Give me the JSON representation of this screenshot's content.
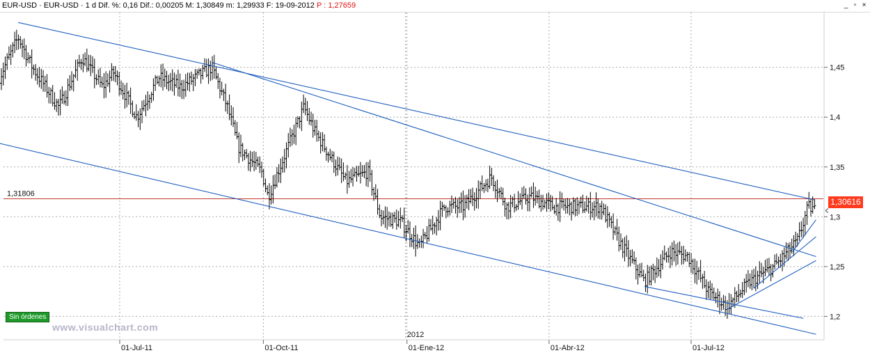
{
  "header": {
    "symbol": "EUR-USD · EUR-USD · 1 d",
    "dif_pct_label": "Dif. %:",
    "dif_pct": "0,16",
    "dif_label": "Dif.:",
    "dif": "0,00205",
    "max_label": "M:",
    "max": "1,30849",
    "min_label": "m:",
    "min": "1,29933",
    "date_label": "F:",
    "date": "19-09-2012",
    "price_label": "P :",
    "price": "1,27659"
  },
  "badge": "Sin órdenes",
  "watermark": "www.visualchart.com",
  "current_price_tag": "1,30616",
  "horizontal_line_label": "1,31806",
  "chart_data": {
    "type": "ohlc",
    "title": "",
    "xlabel": "",
    "ylabel": "",
    "ylim": [
      1.1765,
      1.505
    ],
    "x_ticks": [
      "01-Jul-11",
      "01-Oct-11",
      "01-Ene-12",
      "01-Abr-12",
      "01-Jul-12"
    ],
    "year_marker": "2012",
    "y_ticks": [
      {
        "value": 1.2,
        "label": "1,2"
      },
      {
        "value": 1.25,
        "label": "1,25"
      },
      {
        "value": 1.3,
        "label": "1,3"
      },
      {
        "value": 1.35,
        "label": "1,35"
      },
      {
        "value": 1.4,
        "label": "1,4"
      },
      {
        "value": 1.45,
        "label": "1,45"
      }
    ],
    "grid": true,
    "horizontal_line": 1.31806,
    "last_close": 1.30616,
    "series_close_path": [
      [
        "2011-04-15",
        1.44
      ],
      [
        "2011-04-27",
        1.48
      ],
      [
        "2011-05-06",
        1.45
      ],
      [
        "2011-05-23",
        1.41
      ],
      [
        "2011-06-07",
        1.46
      ],
      [
        "2011-06-20",
        1.43
      ],
      [
        "2011-06-27",
        1.445
      ],
      [
        "2011-07-12",
        1.4
      ],
      [
        "2011-07-26",
        1.44
      ],
      [
        "2011-08-09",
        1.43
      ],
      [
        "2011-08-29",
        1.45
      ],
      [
        "2011-09-08",
        1.41
      ],
      [
        "2011-09-15",
        1.37
      ],
      [
        "2011-09-30",
        1.345
      ],
      [
        "2011-10-04",
        1.32
      ],
      [
        "2011-10-27",
        1.41
      ],
      [
        "2011-11-03",
        1.385
      ],
      [
        "2011-11-23",
        1.335
      ],
      [
        "2011-12-07",
        1.345
      ],
      [
        "2011-12-15",
        1.3
      ],
      [
        "2011-12-28",
        1.295
      ],
      [
        "2012-01-09",
        1.27
      ],
      [
        "2012-01-25",
        1.31
      ],
      [
        "2012-02-06",
        1.31
      ],
      [
        "2012-02-24",
        1.34
      ],
      [
        "2012-03-05",
        1.31
      ],
      [
        "2012-03-20",
        1.32
      ],
      [
        "2012-04-04",
        1.31
      ],
      [
        "2012-04-16",
        1.31
      ],
      [
        "2012-05-04",
        1.31
      ],
      [
        "2012-05-16",
        1.275
      ],
      [
        "2012-06-01",
        1.235
      ],
      [
        "2012-06-18",
        1.265
      ],
      [
        "2012-06-29",
        1.26
      ],
      [
        "2012-07-12",
        1.225
      ],
      [
        "2012-07-24",
        1.21
      ],
      [
        "2012-08-08",
        1.235
      ],
      [
        "2012-08-23",
        1.25
      ],
      [
        "2012-09-07",
        1.275
      ],
      [
        "2012-09-14",
        1.31
      ],
      [
        "2012-09-19",
        1.3062
      ]
    ],
    "trend_lines": [
      {
        "name": "upper-channel",
        "from": [
          "2011-04-27",
          1.495
        ],
        "to": [
          "2012-09-18",
          1.317
        ]
      },
      {
        "name": "mid-channel",
        "from": [
          "2011-08-29",
          1.455
        ],
        "to": [
          "2012-09-19",
          1.26
        ]
      },
      {
        "name": "lower-channel",
        "from": [
          "2011-04-14",
          1.374
        ],
        "to": [
          "2012-09-19",
          1.182
        ]
      },
      {
        "name": "recent-support",
        "from": [
          "2012-06-01",
          1.23
        ],
        "to": [
          "2012-09-11",
          1.198
        ]
      },
      {
        "name": "rise-line-1",
        "from": [
          "2012-07-24",
          1.207
        ],
        "to": [
          "2012-09-19",
          1.256
        ]
      },
      {
        "name": "rise-line-2",
        "from": [
          "2012-08-10",
          1.228
        ],
        "to": [
          "2012-09-19",
          1.28
        ]
      },
      {
        "name": "rise-line-3",
        "from": [
          "2012-09-04",
          1.265
        ],
        "to": [
          "2012-09-19",
          1.297
        ]
      }
    ]
  }
}
